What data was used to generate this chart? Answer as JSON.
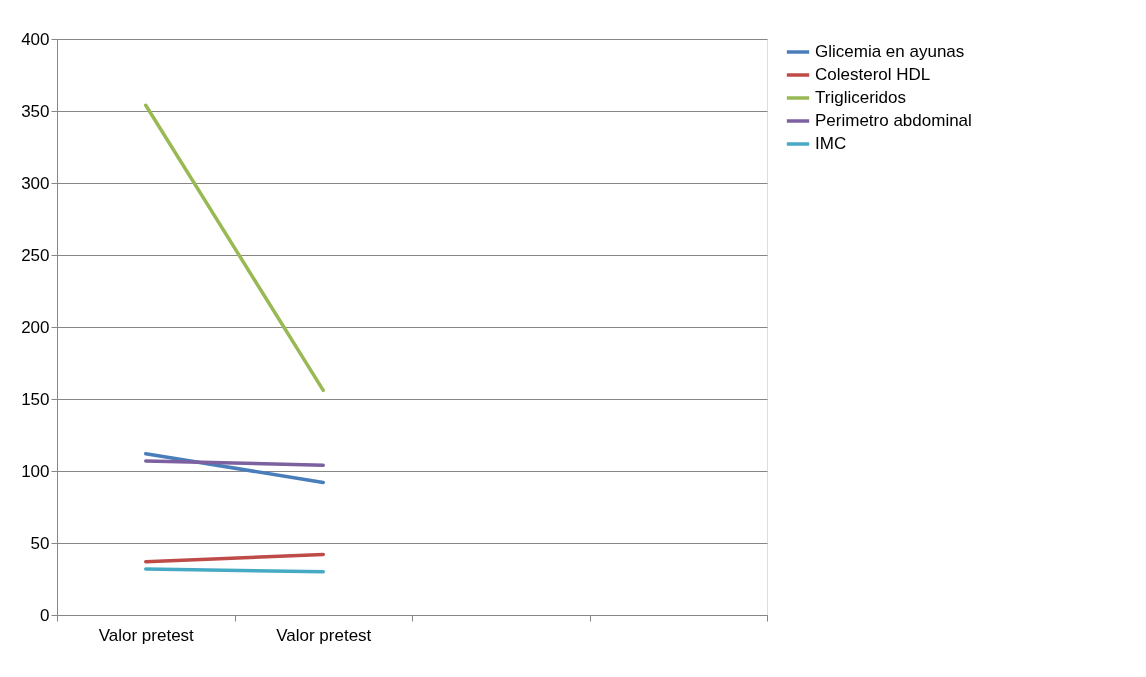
{
  "chart_data": {
    "type": "line",
    "categories": [
      "Valor pretest",
      "Valor pretest",
      null,
      null
    ],
    "series": [
      {
        "name": "Glicemia en ayunas",
        "color": "#4a7ebb",
        "values": [
          112,
          92,
          null,
          null
        ]
      },
      {
        "name": "Colesterol HDL",
        "color": "#be4b48",
        "values": [
          37,
          42,
          null,
          null
        ]
      },
      {
        "name": "Trigliceridos",
        "color": "#98b954",
        "values": [
          354,
          156,
          null,
          null
        ]
      },
      {
        "name": "Perimetro abdominal",
        "color": "#7d60a0",
        "values": [
          107,
          104,
          null,
          null
        ]
      },
      {
        "name": "IMC",
        "color": "#46aac5",
        "values": [
          32,
          30,
          null,
          null
        ]
      }
    ],
    "ylim": [
      0,
      400
    ],
    "yticks": [
      0,
      50,
      100,
      150,
      200,
      250,
      300,
      350,
      400
    ],
    "grid": "y",
    "legend": "right",
    "marker": "none",
    "line_style": "solid"
  }
}
